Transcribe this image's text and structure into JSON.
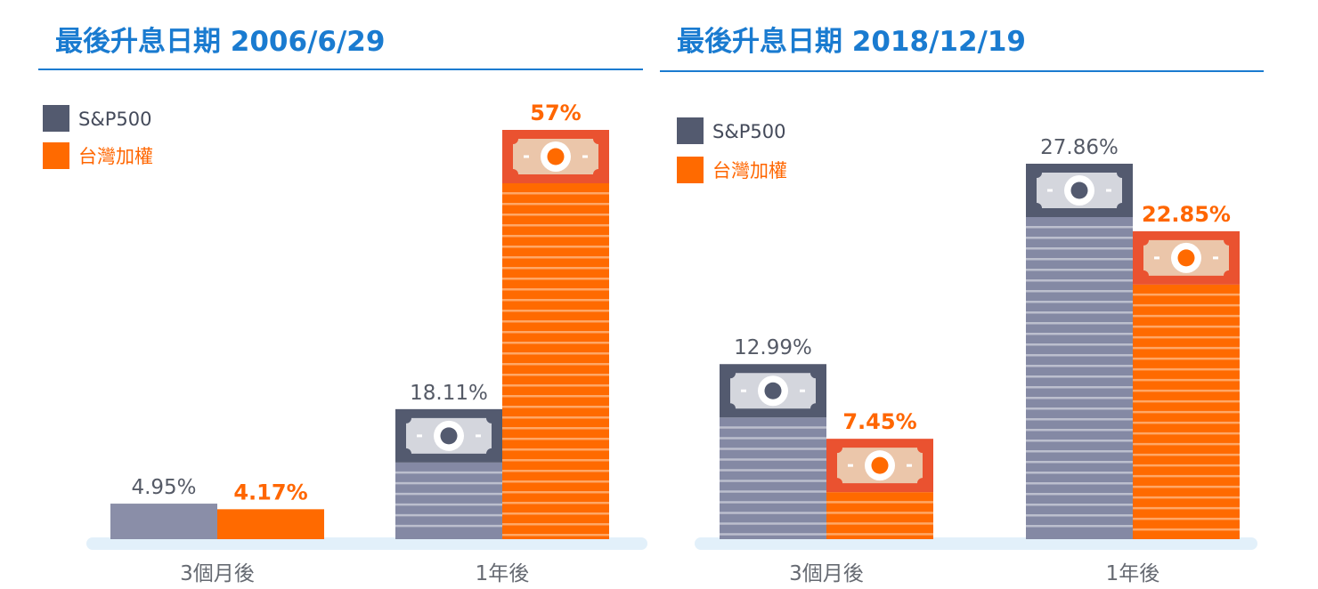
{
  "chart_data": [
    {
      "type": "bar",
      "title": "最後升息日期 2006/6/29",
      "categories": [
        "3個月後",
        "1年後"
      ],
      "series": [
        {
          "name": "S&P500",
          "values": [
            4.95,
            18.11
          ],
          "labels": [
            "4.95%",
            "18.11%"
          ],
          "color": "#535a6f"
        },
        {
          "name": "台灣加權",
          "values": [
            4.17,
            57
          ],
          "labels": [
            "4.17%",
            "57%"
          ],
          "color": "#ff6a00"
        }
      ],
      "legend": "top-left",
      "grid": false
    },
    {
      "type": "bar",
      "title": "最後升息日期 2018/12/19",
      "categories": [
        "3個月後",
        "1年後"
      ],
      "series": [
        {
          "name": "S&P500",
          "values": [
            12.99,
            27.86
          ],
          "labels": [
            "12.99%",
            "27.86%"
          ],
          "color": "#535a6f"
        },
        {
          "name": "台灣加權",
          "values": [
            7.45,
            22.85
          ],
          "labels": [
            "7.45%",
            "22.85%"
          ],
          "color": "#ff6a00"
        }
      ],
      "legend": "top-left",
      "grid": false
    }
  ],
  "colors": {
    "title": "#1a7bd0",
    "baseline": "#e2f0fa",
    "sp500_body": "#8489a4",
    "taiwan_cap": "#ea5230"
  }
}
